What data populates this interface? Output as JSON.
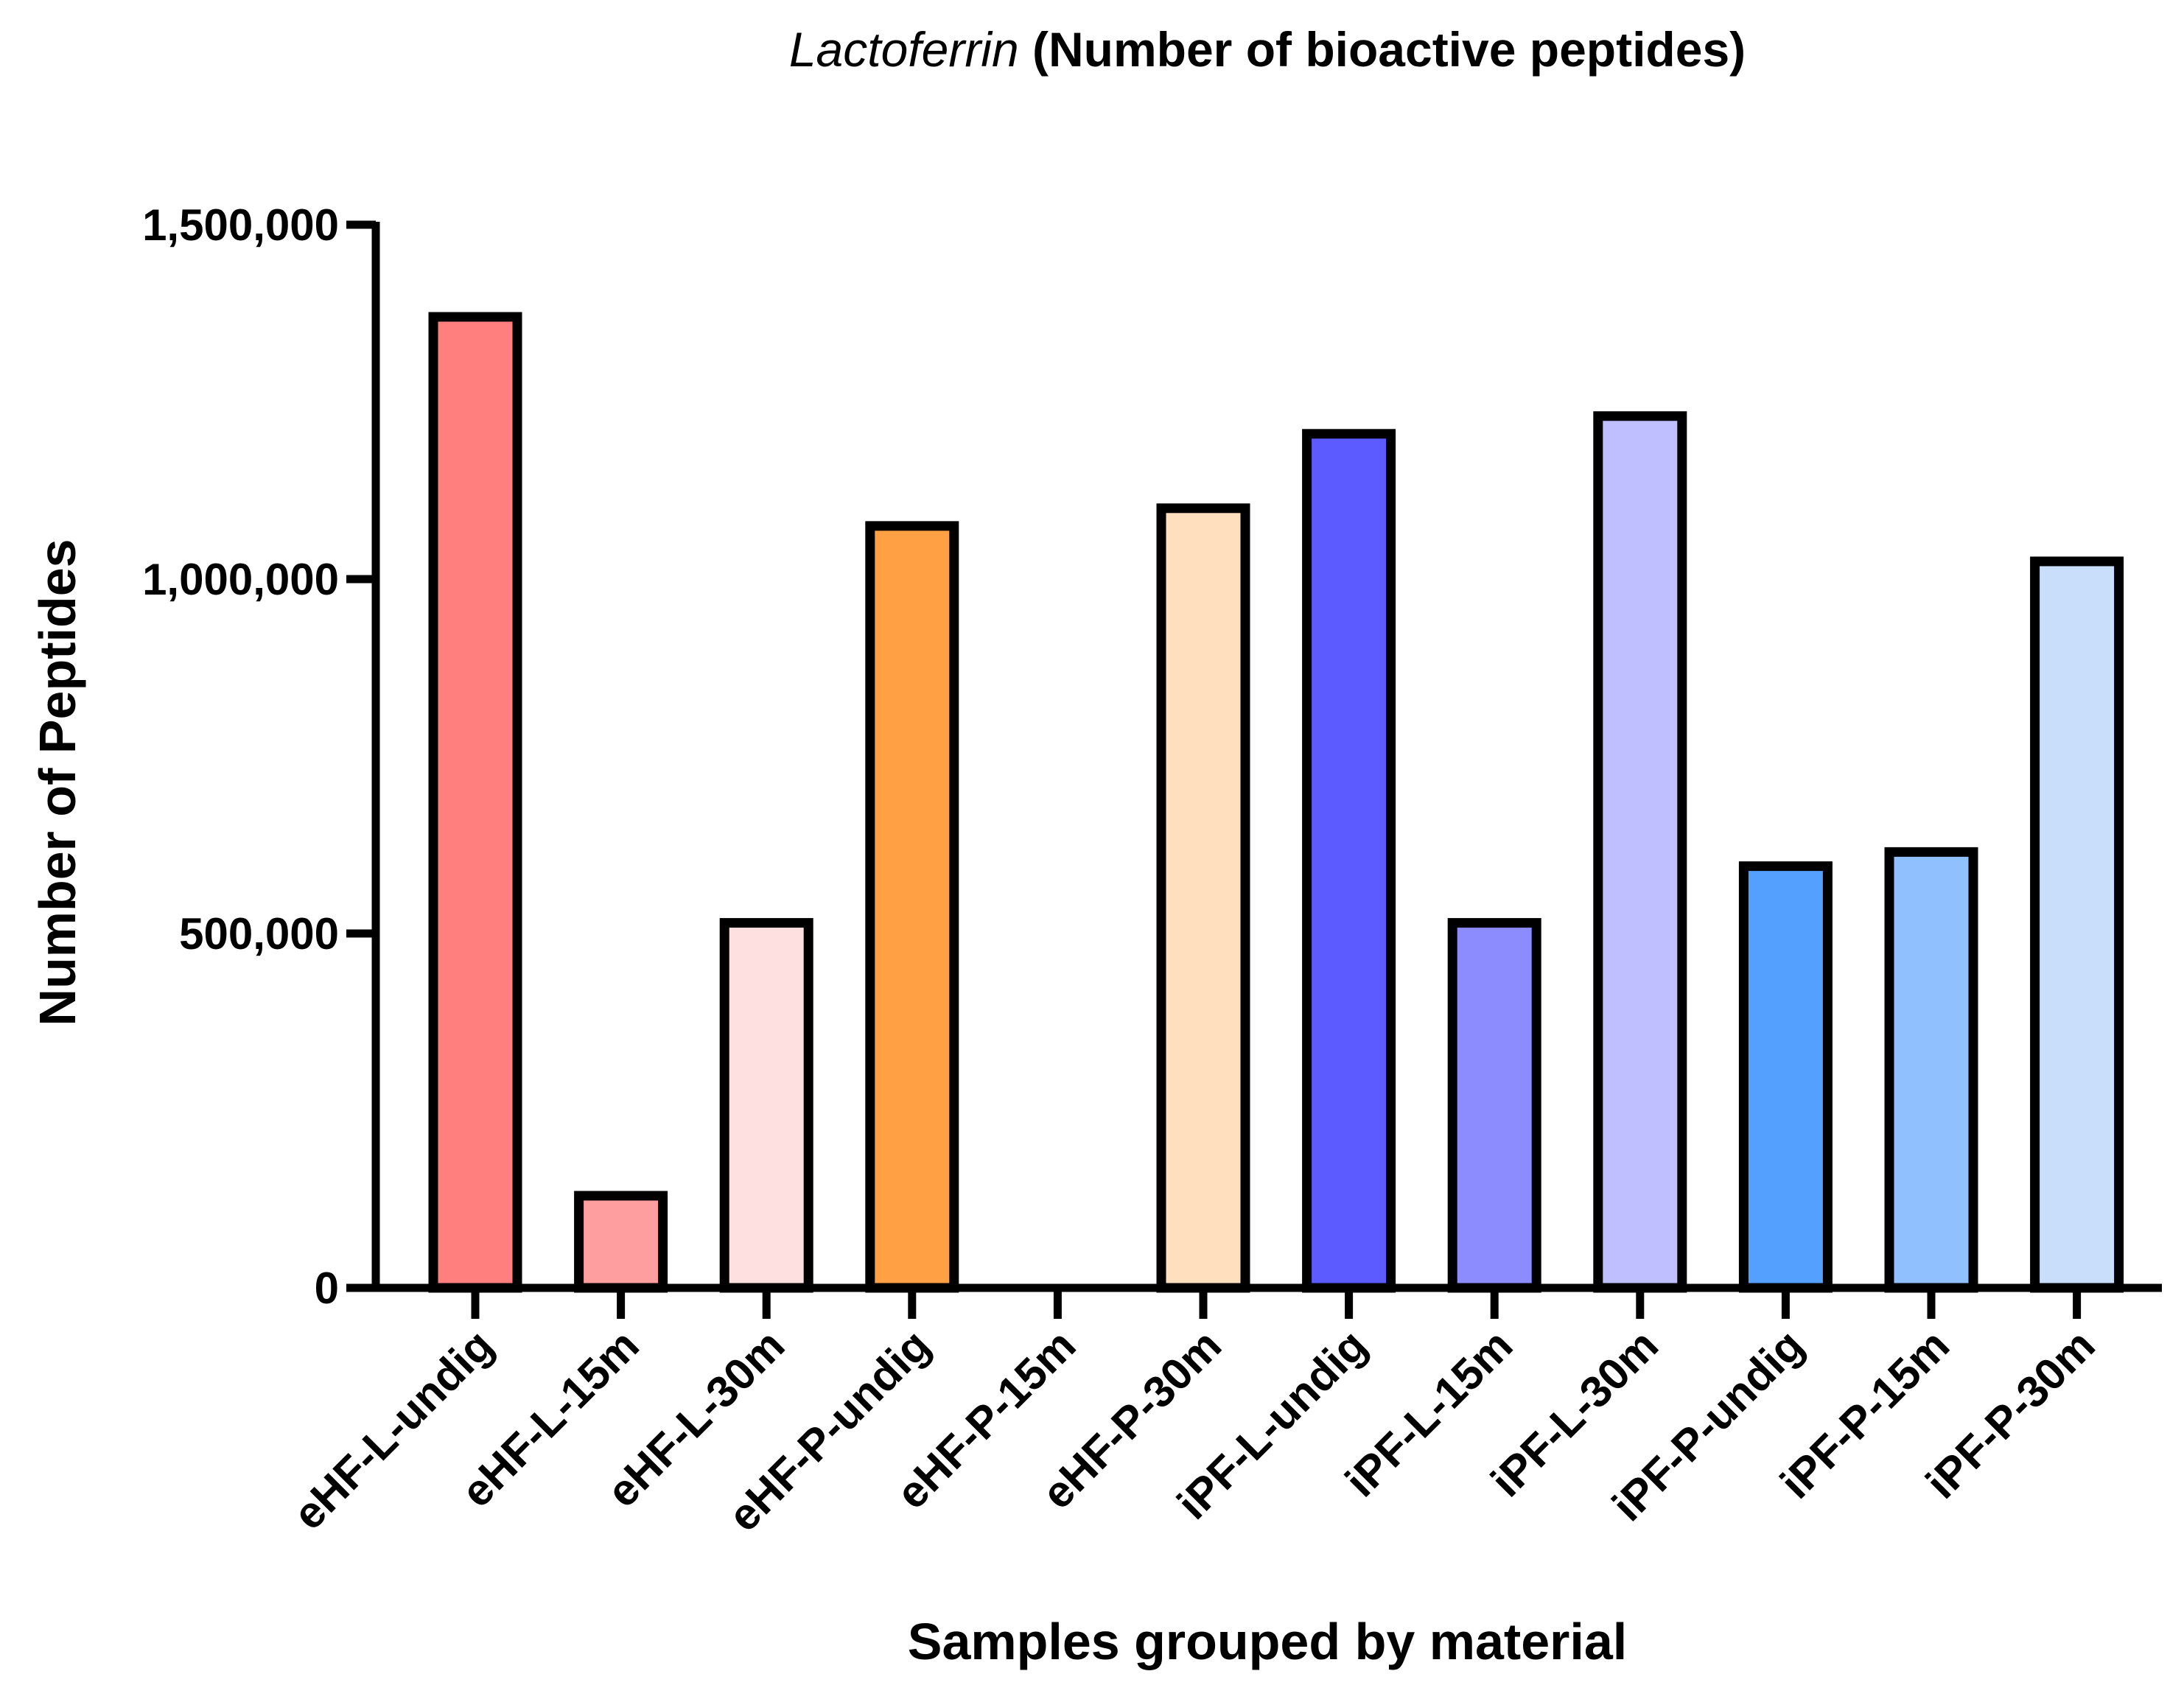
{
  "chart_data": {
    "type": "bar",
    "title_italic": "Lactoferrin",
    "title_bold": " (Number of bioactive peptides)",
    "xlabel": "Samples grouped by material",
    "ylabel": "Number of Peptides",
    "ylim": [
      0,
      1500000
    ],
    "yticks": [
      0,
      500000,
      1000000,
      1500000
    ],
    "ytick_labels": [
      "0",
      "500,000",
      "1,000,000",
      "1,500,000"
    ],
    "grid": false,
    "categories": [
      "eHF-L-undig",
      "eHF-L-15m",
      "eHF-L-30m",
      "eHF-P-undig",
      "eHF-P-15m",
      "eHF-P-30m",
      "iPF-L-undig",
      "iPF-L-15m",
      "iPF-L-30m",
      "iPF-P-undig",
      "iPF-P-15m",
      "iPF-P-30m"
    ],
    "values": [
      1370000,
      130000,
      515000,
      1075000,
      0,
      1100000,
      1205000,
      515000,
      1230000,
      595000,
      615000,
      1025000
    ],
    "colors": [
      "#ff7f7f",
      "#ff9e9e",
      "#fee0e0",
      "#ffa044",
      "#ffffff",
      "#ffdfbe",
      "#5b5bff",
      "#8c8cff",
      "#bfbfff",
      "#54a0ff",
      "#91c0ff",
      "#c8defa"
    ]
  }
}
